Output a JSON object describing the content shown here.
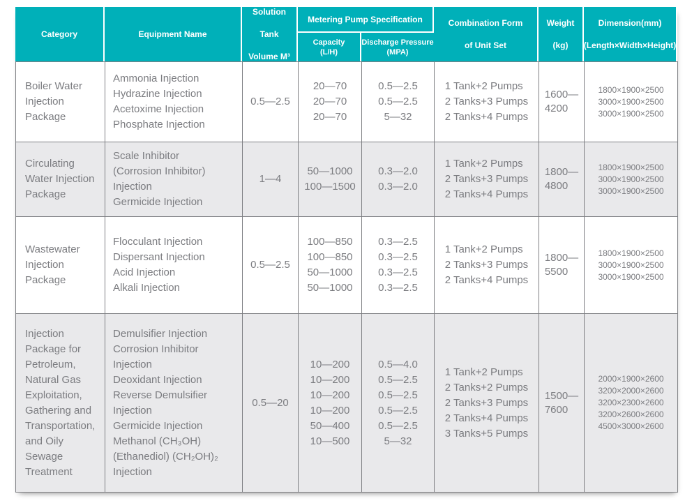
{
  "colors": {
    "header_bg": "#00B0B9",
    "header_text": "#FFFFFF",
    "stripe_bg": "#E9E9EB",
    "body_text": "#7B7C80",
    "grid_line": "#7E7F83"
  },
  "header": {
    "category": "Category",
    "equipment": "Equipment Name",
    "solution_tank": [
      "Solution Tank",
      "Volume M³"
    ],
    "metering_group": "Metering Pump Specification",
    "capacity": [
      "Capacity",
      "(L/H)"
    ],
    "discharge": [
      "Discharge Pressure",
      "(MPA)"
    ],
    "combination": [
      "Combination Form",
      "of Unit Set"
    ],
    "weight": [
      "Weight",
      "(kg)"
    ],
    "dimension": [
      "Dimension(mm)",
      "(Length×Width×Height)"
    ]
  },
  "rows": [
    {
      "category": [
        "Boiler Water",
        "Injection",
        "Package"
      ],
      "equipment": [
        "Ammonia Injection",
        "Hydrazine Injection",
        "Acetoxime Injection",
        "Phosphate Injection"
      ],
      "tank_volume": "0.5—2.5",
      "capacity": [
        "20—70",
        "20—70",
        "20—70"
      ],
      "discharge": [
        "0.5—2.5",
        "0.5—2.5",
        "5—32"
      ],
      "combination": [
        "1 Tank+2 Pumps",
        "2 Tanks+3 Pumps",
        "2 Tanks+4 Pumps"
      ],
      "weight": [
        "1600—",
        "4200"
      ],
      "dimension": [
        "1800×1900×2500",
        "3000×1900×2500",
        "3000×1900×2500"
      ]
    },
    {
      "category": [
        "Circulating",
        "Water Injection",
        " Package"
      ],
      "equipment": [
        "Scale Inhibitor",
        " (Corrosion Inhibitor)",
        " Injection",
        "Germicide Injection"
      ],
      "tank_volume": "1—4",
      "capacity": [
        "50—1000",
        "100—1500"
      ],
      "discharge": [
        "0.3—2.0",
        "0.3—2.0"
      ],
      "combination": [
        "1 Tank+2 Pumps",
        "2 Tanks+3 Pumps",
        "2 Tanks+4 Pumps"
      ],
      "weight": [
        "1800—",
        "4800"
      ],
      "dimension": [
        "1800×1900×2500",
        "3000×1900×2500",
        "3000×1900×2500"
      ]
    },
    {
      "category": [
        "Wastewater",
        "Injection",
        "Package"
      ],
      "equipment": [
        "Flocculant Injection",
        "Dispersant Injection",
        "Acid Injection",
        "Alkali Injection"
      ],
      "tank_volume": "0.5—2.5",
      "capacity": [
        "100—850",
        "100—850",
        "50—1000",
        "50—1000"
      ],
      "discharge": [
        "0.3—2.5",
        "0.3—2.5",
        "0.3—2.5",
        "0.3—2.5"
      ],
      "combination": [
        "1 Tank+2 Pumps",
        "2 Tanks+3 Pumps",
        "2 Tanks+4 Pumps"
      ],
      "weight": [
        "1800—",
        "5500"
      ],
      "dimension": [
        "1800×1900×2500",
        "3000×1900×2500",
        "3000×1900×2500"
      ]
    },
    {
      "category": [
        "Injection",
        "Package for",
        "Petroleum,",
        "Natural Gas",
        "Exploitation,",
        "Gathering and",
        "Transportation,",
        "and Oily",
        "Sewage",
        "Treatment"
      ],
      "equipment": [
        "Demulsifier Injection",
        "Corrosion Inhibitor",
        "Injection",
        "Deoxidant Injection",
        "Reverse Demulsifier",
        "Injection",
        "Germicide Injection",
        "Methanol (CH₃OH)",
        "(Ethanediol) (CH₂OH)₂",
        "Injection"
      ],
      "tank_volume": "0.5—20",
      "capacity": [
        "10—200",
        "10—200",
        "10—200",
        "10—200",
        "50—400",
        "10—500"
      ],
      "discharge": [
        "0.5—4.0",
        "0.5—2.5",
        "0.5—2.5",
        "0.5—2.5",
        "0.5—2.5",
        "5—32"
      ],
      "combination": [
        "1 Tank+2 Pumps",
        "2 Tanks+2 Pumps",
        "2 Tanks+3 Pumps",
        "2 Tanks+4 Pumps",
        "3 Tanks+5 Pumps"
      ],
      "weight": [
        "1500—",
        "7600"
      ],
      "dimension": [
        "2000×1900×2600",
        "3200×2000×2600",
        "3200×2300×2600",
        "3200×2600×2600",
        "4500×3000×2600"
      ]
    }
  ]
}
